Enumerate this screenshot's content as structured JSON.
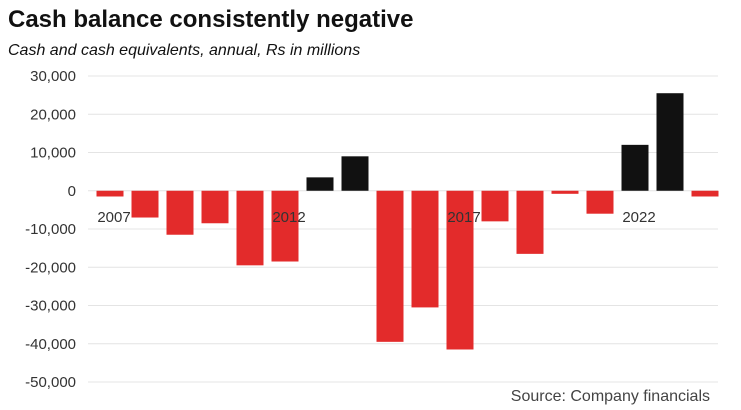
{
  "header": {
    "title": "Cash balance consistently negative",
    "subtitle": "Cash and cash equivalents, annual, Rs in millions"
  },
  "source": "Source: Company financials",
  "colors": {
    "negative": "#e32b2b",
    "positive": "#111111",
    "grid": "#e4e4e4",
    "tick_text": "#333333"
  },
  "chart_data": {
    "type": "bar",
    "title": "Cash balance consistently negative",
    "subtitle": "Cash and cash equivalents, annual, Rs in millions",
    "xlabel": "",
    "ylabel": "",
    "ylim": [
      -50000,
      30000
    ],
    "yticks": [
      30000,
      20000,
      10000,
      0,
      -10000,
      -20000,
      -30000,
      -40000,
      -50000
    ],
    "ytick_labels": [
      "30,000",
      "20,000",
      "10,000",
      "0",
      "-10,000",
      "-20,000",
      "-30,000",
      "-40,000",
      "-50,000"
    ],
    "categories": [
      2007,
      2008,
      2009,
      2010,
      2011,
      2012,
      2013,
      2014,
      2015,
      2016,
      2017,
      2018,
      2019,
      2020,
      2021,
      2022,
      2023,
      2024
    ],
    "values": [
      -1500,
      -7000,
      -11500,
      -8500,
      -19500,
      -18500,
      3500,
      9000,
      -39500,
      -30500,
      -41500,
      -8000,
      -16500,
      -800,
      -6000,
      12000,
      25500,
      -1500
    ],
    "xtick_labels": [
      {
        "category": 2007,
        "label": "2007"
      },
      {
        "category": 2012,
        "label": "2012"
      },
      {
        "category": 2017,
        "label": "2017"
      },
      {
        "category": 2022,
        "label": "2022"
      }
    ],
    "grid": true,
    "legend": "none"
  }
}
